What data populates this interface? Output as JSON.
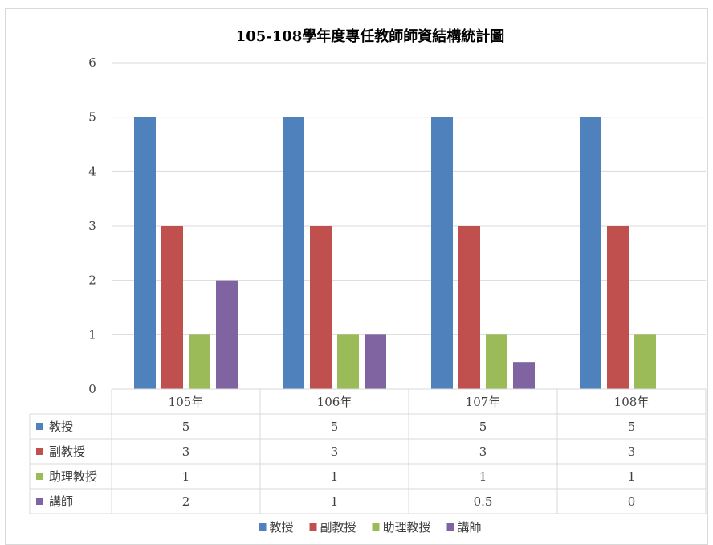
{
  "chart_data": {
    "type": "bar",
    "title": "105-108學年度專任教師師資結構統計圖",
    "categories": [
      "105年",
      "106年",
      "107年",
      "108年"
    ],
    "series": [
      {
        "name": "教授",
        "color": "#4f81bd",
        "values": [
          5,
          5,
          5,
          5
        ],
        "labels": [
          "5",
          "5",
          "5",
          "5"
        ]
      },
      {
        "name": "副教授",
        "color": "#c0504d",
        "values": [
          3,
          3,
          3,
          3
        ],
        "labels": [
          "3",
          "3",
          "3",
          "3"
        ]
      },
      {
        "name": "助理教授",
        "color": "#9bbb59",
        "values": [
          1,
          1,
          1,
          1
        ],
        "labels": [
          "1",
          "1",
          "1",
          "1"
        ]
      },
      {
        "name": "講師",
        "color": "#8064a2",
        "values": [
          2,
          1,
          0.5,
          0
        ],
        "labels": [
          "2",
          "1",
          "0.5",
          "0"
        ]
      }
    ],
    "y_ticks": [
      "0",
      "1",
      "2",
      "3",
      "4",
      "5",
      "6"
    ],
    "ylim": [
      0,
      6
    ],
    "xlabel": "",
    "ylabel": "",
    "grid": true,
    "legend_position": "bottom",
    "data_table": true
  }
}
